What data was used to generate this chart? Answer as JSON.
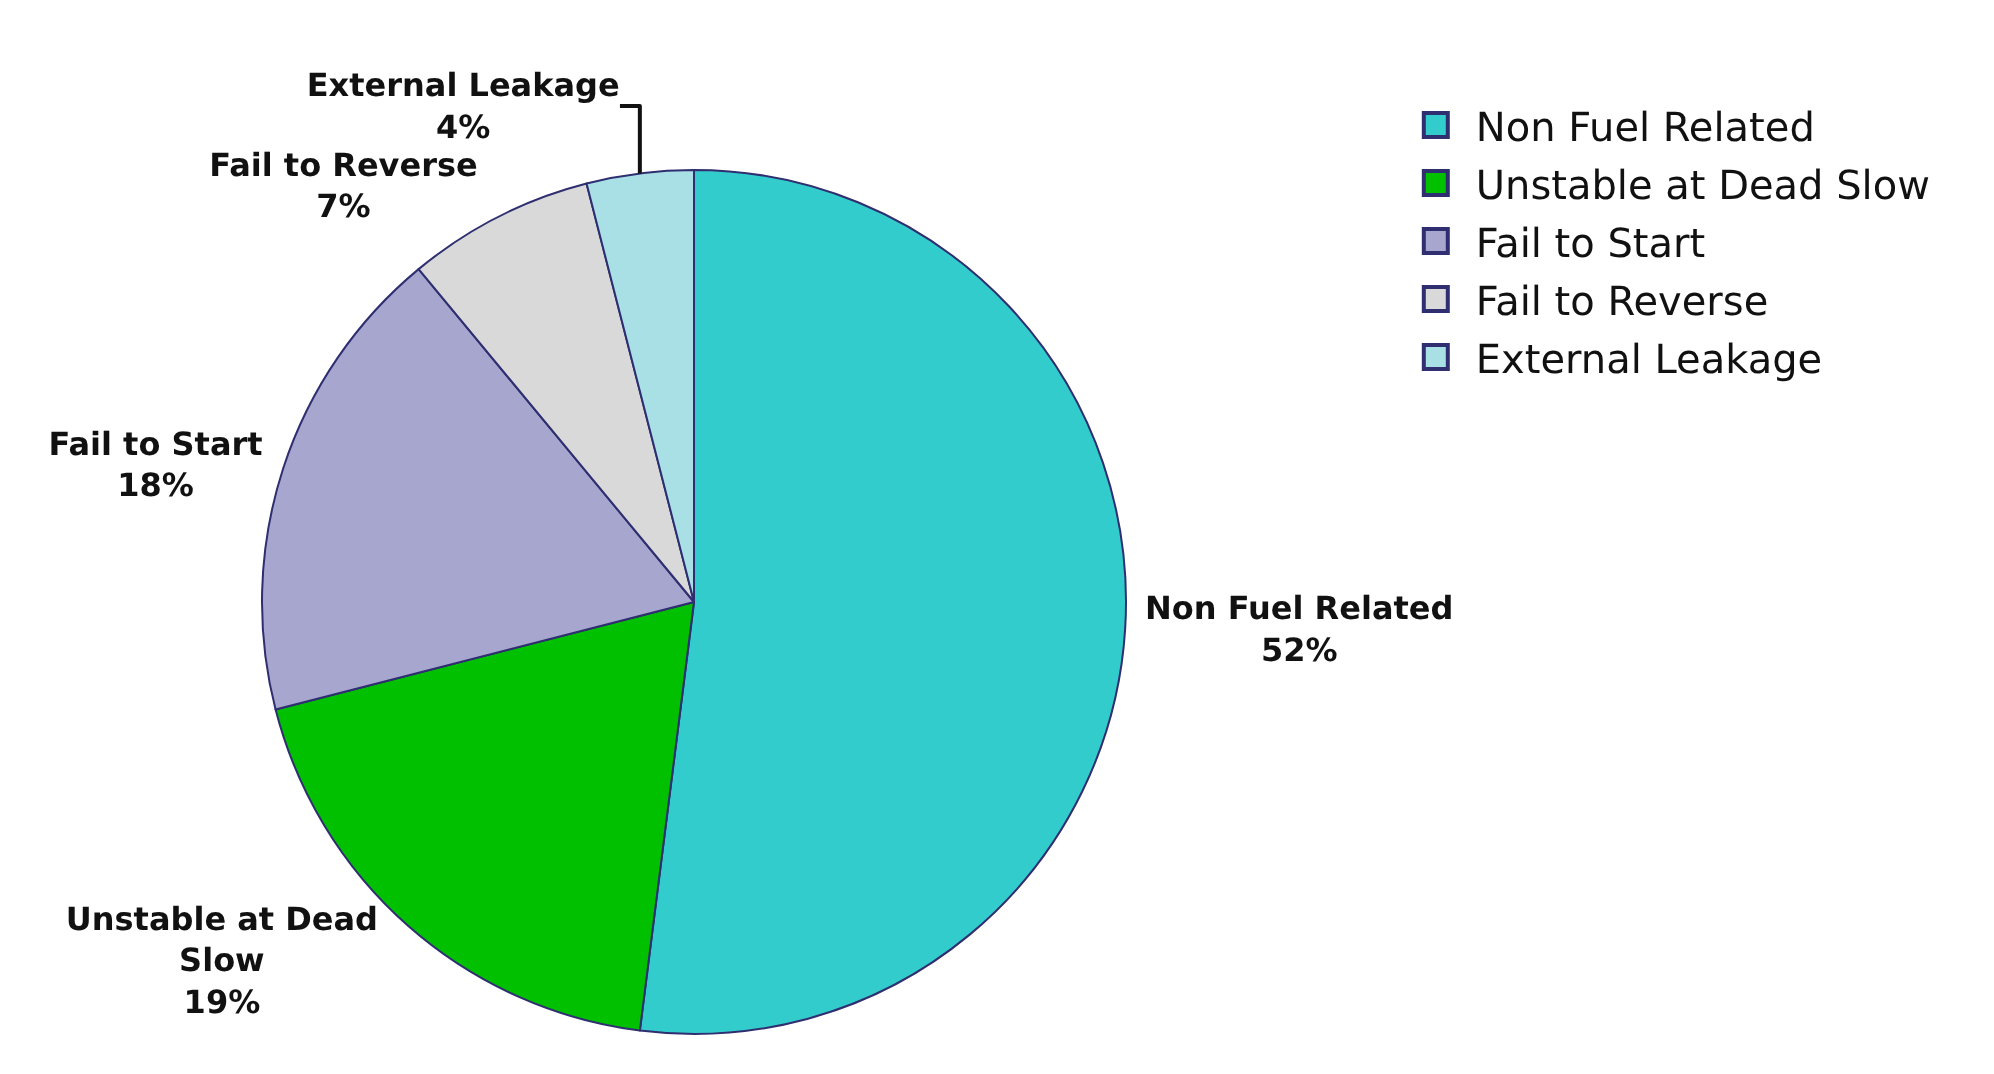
{
  "chart_data": {
    "type": "pie",
    "categories": [
      "Non Fuel Related",
      "Unstable at Dead Slow",
      "Fail to Start",
      "Fail to Reverse",
      "External Leakage"
    ],
    "values": [
      52,
      19,
      18,
      7,
      4
    ],
    "value_labels": [
      "52%",
      "19%",
      "18%",
      "7%",
      "4%"
    ],
    "colors": [
      "#33cccc",
      "#00c000",
      "#a6a6ce",
      "#d9d9d9",
      "#a8e0e6"
    ],
    "legend": "top right"
  }
}
